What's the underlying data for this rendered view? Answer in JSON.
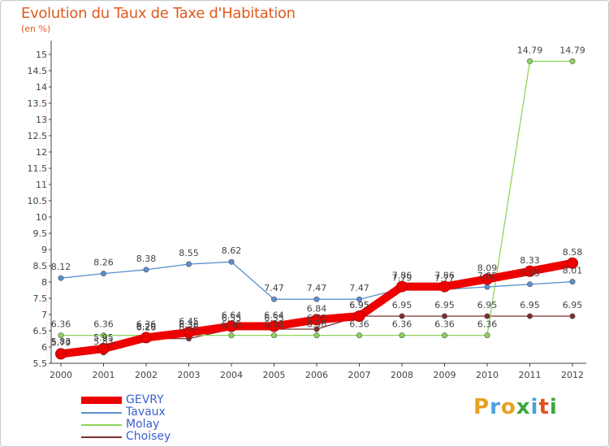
{
  "chart_data": {
    "type": "line",
    "title": "Evolution du Taux de Taxe d'Habitation",
    "subtitle": "(en %)",
    "x": [
      "2000",
      "2001",
      "2002",
      "2003",
      "2004",
      "2005",
      "2006",
      "2007",
      "2008",
      "2009",
      "2010",
      "2011",
      "2012"
    ],
    "ylim": [
      5.5,
      15
    ],
    "yticks": [
      "5.5",
      "6",
      "6.5",
      "7",
      "7.5",
      "8",
      "8.5",
      "9",
      "9.5",
      "10",
      "10.5",
      "11",
      "11.5",
      "12",
      "12.5",
      "13",
      "13.5",
      "14",
      "14.5",
      "15"
    ],
    "grid": false,
    "legend_position": "bottom-left",
    "series": [
      {
        "name": "GEVRY",
        "color": "#ee0000",
        "values": [
          5.79,
          5.95,
          6.29,
          6.45,
          6.64,
          6.64,
          6.84,
          6.95,
          7.86,
          7.86,
          8.09,
          8.33,
          8.58
        ],
        "labels": [
          "5.79",
          "5.95",
          "6.29",
          "6.45",
          "6.64",
          "6.64",
          "6.84",
          "6.95",
          "7.86",
          "7.86",
          "8.09",
          "8.33",
          "8.58"
        ]
      },
      {
        "name": "Tavaux",
        "color": "#5b8fcd",
        "values": [
          8.12,
          8.26,
          8.38,
          8.55,
          8.62,
          7.47,
          7.47,
          7.47,
          7.79,
          7.77,
          7.85,
          7.93,
          8.01
        ],
        "labels": [
          "8.12",
          "8.26",
          "8.38",
          "8.55",
          "8.62",
          "7.47",
          "7.47",
          "7.47",
          "7.79",
          "7.77",
          "7.85",
          "7.93",
          "8.01"
        ]
      },
      {
        "name": "Molay",
        "color": "#8ed45a",
        "values": [
          6.36,
          6.36,
          6.36,
          6.36,
          6.36,
          6.36,
          6.36,
          6.36,
          6.36,
          6.36,
          6.36,
          14.79,
          14.79
        ],
        "labels": [
          "6.36",
          "6.36",
          "6.36",
          "6.36",
          "6.36",
          "6.36",
          "6.36",
          "6.36",
          "6.36",
          "6.36",
          "6.36",
          "14.79",
          "14.79"
        ]
      },
      {
        "name": "Choisey",
        "color": "#7a3030",
        "values": [
          5.83,
          5.83,
          6.26,
          6.26,
          6.55,
          6.55,
          6.55,
          6.95,
          6.95,
          6.95,
          6.95,
          6.95,
          6.95
        ],
        "labels": [
          "5.83",
          "5.83",
          "6.26",
          "6.26",
          "6.55",
          "6.55",
          "6.55",
          "6.95",
          "6.95",
          "6.95",
          "6.95",
          "6.95",
          "6.95"
        ]
      }
    ]
  },
  "logo": {
    "letters": [
      "P",
      "r",
      "o",
      "x",
      "i",
      "t",
      "i"
    ],
    "colors": [
      "#e8a020",
      "#4aa0e0",
      "#e8a020",
      "#3aa83a",
      "#4aa0e0",
      "#e05020",
      "#3aa83a"
    ]
  }
}
